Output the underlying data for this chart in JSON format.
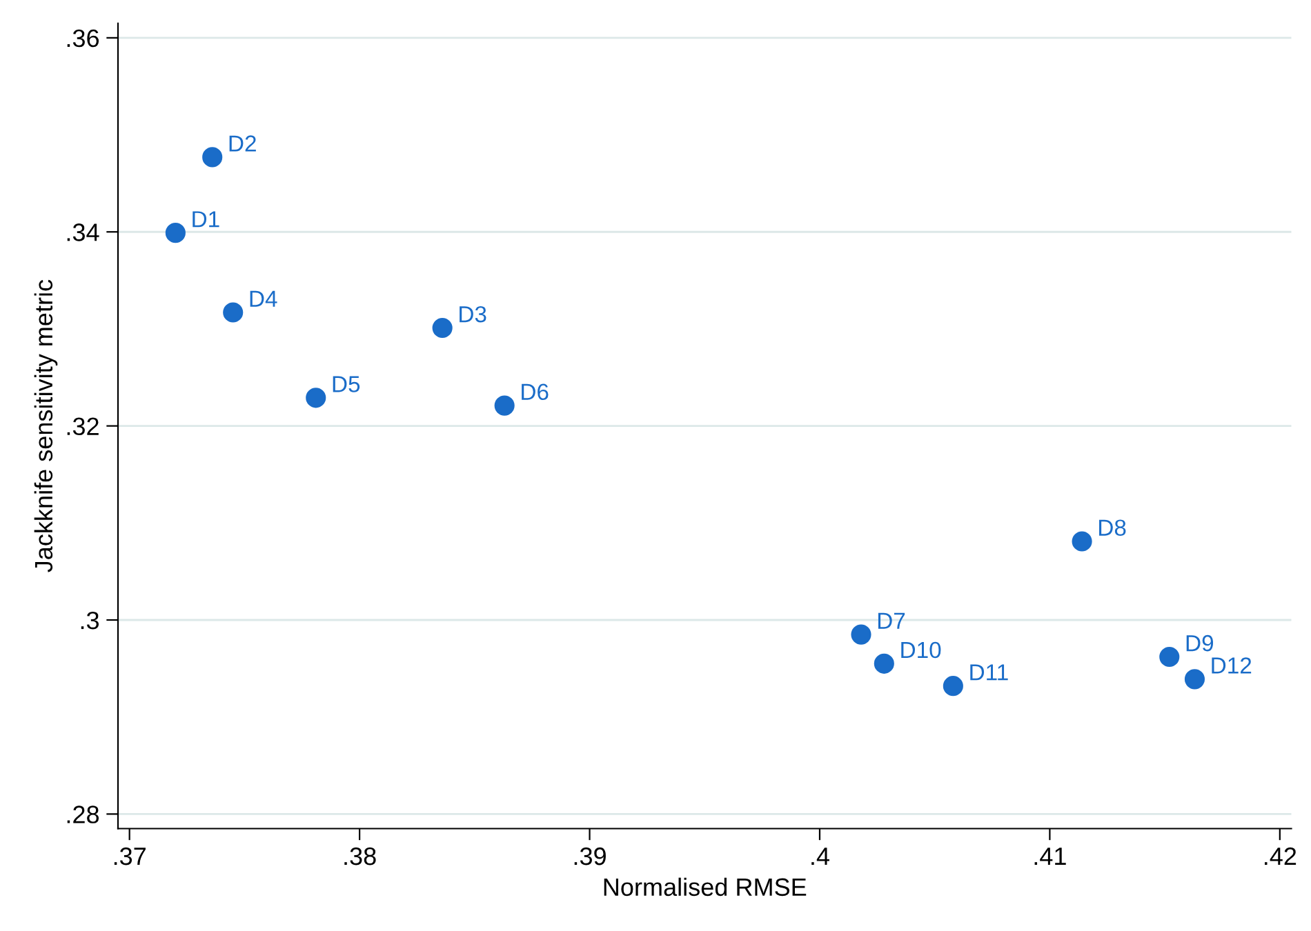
{
  "chart_data": {
    "type": "scatter",
    "xlabel": "Normalised RMSE",
    "ylabel": "Jackknife sensitivity metric",
    "x": [
      0.372,
      0.3736,
      0.3836,
      0.3745,
      0.3781,
      0.3863,
      0.4018,
      0.4114,
      0.4152,
      0.4028,
      0.4058,
      0.4163
    ],
    "series": [
      {
        "color": "#1a6cc8",
        "values": [
          0.3399,
          0.3477,
          0.3301,
          0.3317,
          0.3229,
          0.3221,
          0.2985,
          0.3081,
          0.2962,
          0.2955,
          0.2932,
          0.2939
        ]
      }
    ],
    "annotations": [
      {
        "text": "D1",
        "x": 0.372,
        "y": 0.3399
      },
      {
        "text": "D2",
        "x": 0.3736,
        "y": 0.3477
      },
      {
        "text": "D3",
        "x": 0.3836,
        "y": 0.3301
      },
      {
        "text": "D4",
        "x": 0.3745,
        "y": 0.3317
      },
      {
        "text": "D5",
        "x": 0.3781,
        "y": 0.3229
      },
      {
        "text": "D6",
        "x": 0.3863,
        "y": 0.3221
      },
      {
        "text": "D7",
        "x": 0.4018,
        "y": 0.2985
      },
      {
        "text": "D8",
        "x": 0.4114,
        "y": 0.3081
      },
      {
        "text": "D9",
        "x": 0.4152,
        "y": 0.2962
      },
      {
        "text": "D10",
        "x": 0.4028,
        "y": 0.2955
      },
      {
        "text": "D11",
        "x": 0.4058,
        "y": 0.2932
      },
      {
        "text": "D12",
        "x": 0.4163,
        "y": 0.2939
      }
    ],
    "xlim": [
      0.3695,
      0.4205
    ],
    "ylim": [
      0.2785,
      0.3615
    ],
    "xticks": [
      {
        "value": 0.37,
        "label": ".37"
      },
      {
        "value": 0.38,
        "label": ".38"
      },
      {
        "value": 0.39,
        "label": ".39"
      },
      {
        "value": 0.4,
        "label": ".4"
      },
      {
        "value": 0.41,
        "label": ".41"
      },
      {
        "value": 0.42,
        "label": ".42"
      }
    ],
    "yticks": [
      {
        "value": 0.28,
        "label": ".28"
      },
      {
        "value": 0.3,
        "label": ".3"
      },
      {
        "value": 0.32,
        "label": ".32"
      },
      {
        "value": 0.34,
        "label": ".34"
      },
      {
        "value": 0.36,
        "label": ".36"
      }
    ],
    "grid": "y",
    "marker": "circle",
    "legend": false
  }
}
